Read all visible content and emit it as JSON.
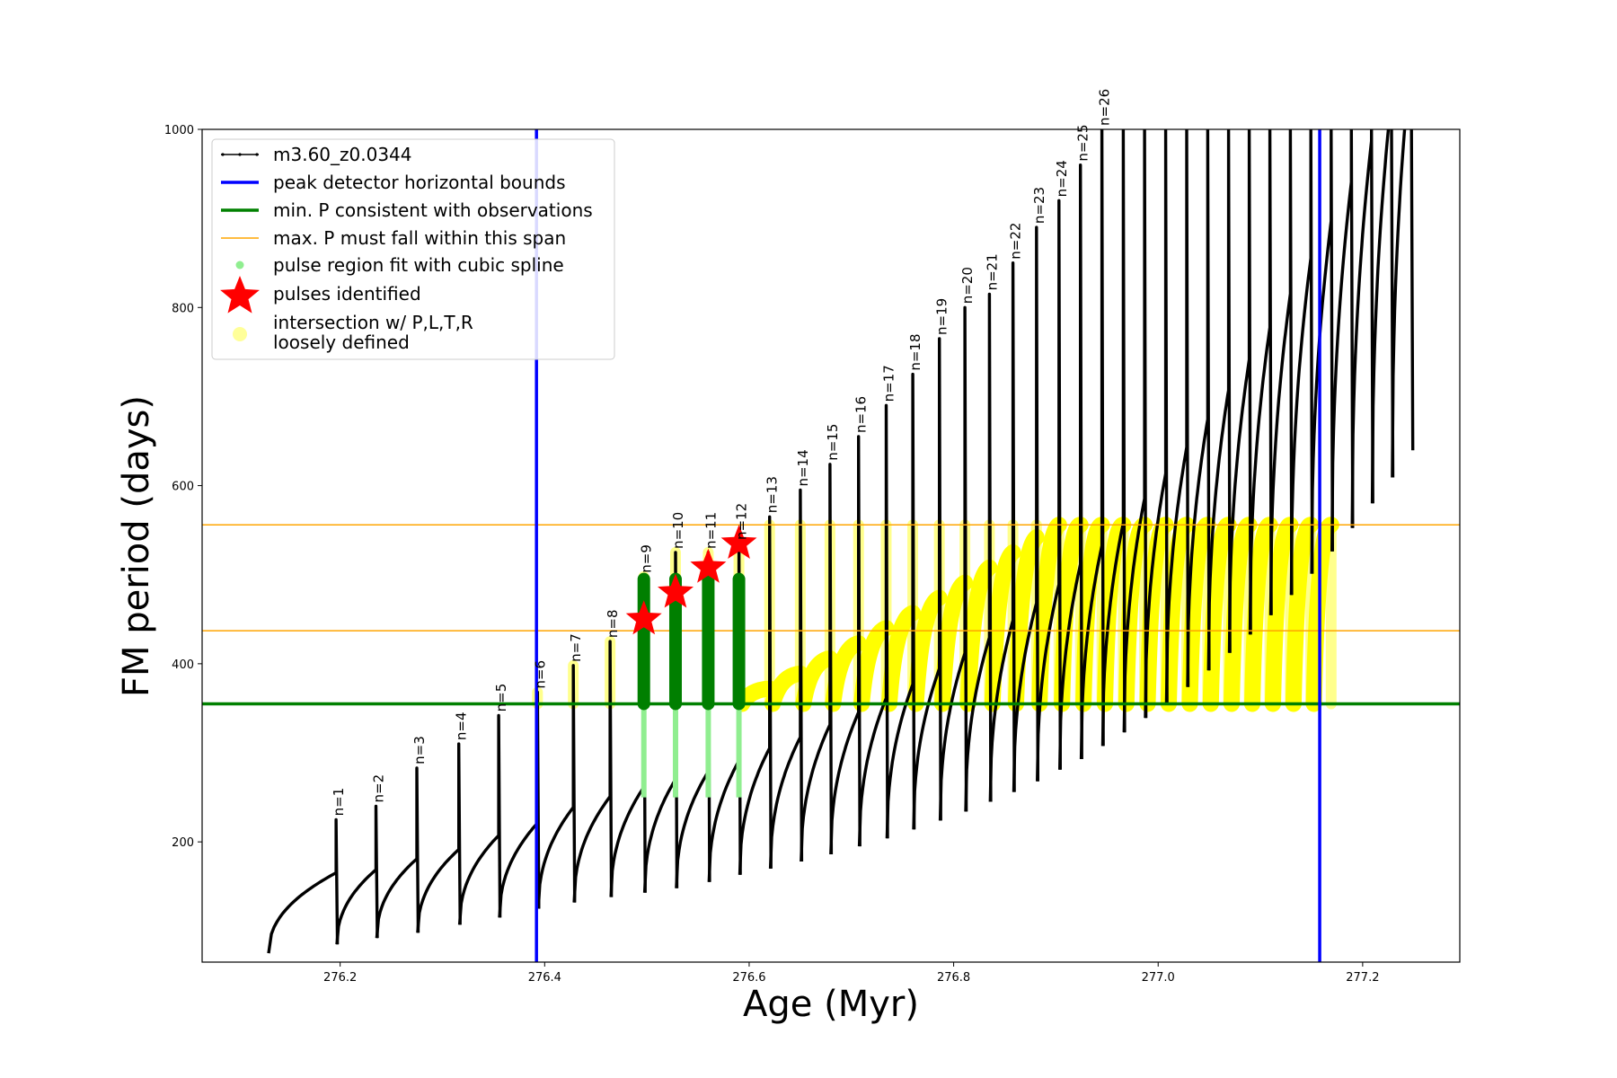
{
  "chart_data": {
    "type": "line",
    "xlabel": "Age (Myr)",
    "ylabel": "FM period (days)",
    "xlim": [
      276.065,
      277.295
    ],
    "ylim": [
      65,
      1000
    ],
    "x_ticks": [
      276.2,
      276.4,
      276.6,
      276.8,
      277.0,
      277.2
    ],
    "x_tick_labels": [
      "276.2",
      "276.4",
      "276.6",
      "276.8",
      "277.0",
      "277.2"
    ],
    "y_ticks": [
      200,
      400,
      600,
      800,
      1000
    ],
    "y_tick_labels": [
      "200",
      "400",
      "600",
      "800",
      "1000"
    ],
    "grid": false,
    "legend_position": "top-left",
    "legend": [
      {
        "label": "m3.60_z0.0344",
        "style": "line-dots",
        "color": "#000000"
      },
      {
        "label": "peak detector horizontal bounds",
        "style": "thick-line",
        "color": "#0000ff"
      },
      {
        "label": "min. P consistent with observations",
        "style": "thick-line",
        "color": "#008000"
      },
      {
        "label": "max. P must fall within this span",
        "style": "thin-line",
        "color": "#ffa500"
      },
      {
        "label": "pulse region fit with cubic spline",
        "style": "dot",
        "color": "#90ee90"
      },
      {
        "label": "pulses identified",
        "style": "star",
        "color": "#ff0000"
      },
      {
        "label_lines": [
          "intersection w/ P,L,T,R",
          "loosely defined"
        ],
        "style": "circle",
        "color": "#ffff99"
      }
    ],
    "reference_lines": {
      "vertical_blue": [
        276.392,
        277.158
      ],
      "horizontal_green": 355,
      "horizontal_orange": [
        437,
        556
      ]
    },
    "pulses": [
      {
        "label": "n=1",
        "age": 276.196,
        "peak": 225,
        "min_before": 83
      },
      {
        "label": "n=2",
        "age": 276.235,
        "peak": 240,
        "min_before": 85
      },
      {
        "label": "n=3",
        "age": 276.275,
        "peak": 283,
        "min_before": 92
      },
      {
        "label": "n=4",
        "age": 276.316,
        "peak": 310,
        "min_before": 98
      },
      {
        "label": "n=5",
        "age": 276.355,
        "peak": 342,
        "min_before": 107
      },
      {
        "label": "n=6",
        "age": 276.393,
        "peak": 368,
        "min_before": 115
      },
      {
        "label": "n=7",
        "age": 276.428,
        "peak": 398,
        "min_before": 125
      },
      {
        "label": "n=8",
        "age": 276.464,
        "peak": 425,
        "min_before": 132
      },
      {
        "label": "n=9",
        "age": 276.497,
        "peak": 498,
        "min_before": 138
      },
      {
        "label": "n=10",
        "age": 276.528,
        "peak": 525,
        "min_before": 143
      },
      {
        "label": "n=11",
        "age": 276.56,
        "peak": 525,
        "min_before": 148
      },
      {
        "label": "n=12",
        "age": 276.59,
        "peak": 535,
        "min_before": 155
      },
      {
        "label": "n=13",
        "age": 276.62,
        "peak": 565,
        "min_before": 163
      },
      {
        "label": "n=14",
        "age": 276.65,
        "peak": 595,
        "min_before": 170
      },
      {
        "label": "n=15",
        "age": 276.679,
        "peak": 624,
        "min_before": 178
      },
      {
        "label": "n=16",
        "age": 276.707,
        "peak": 655,
        "min_before": 186
      },
      {
        "label": "n=17",
        "age": 276.734,
        "peak": 690,
        "min_before": 195
      },
      {
        "label": "n=18",
        "age": 276.76,
        "peak": 725,
        "min_before": 204
      },
      {
        "label": "n=19",
        "age": 276.786,
        "peak": 765,
        "min_before": 214
      },
      {
        "label": "n=20",
        "age": 276.811,
        "peak": 800,
        "min_before": 224
      },
      {
        "label": "n=21",
        "age": 276.835,
        "peak": 815,
        "min_before": 234
      },
      {
        "label": "n=22",
        "age": 276.858,
        "peak": 850,
        "min_before": 245
      },
      {
        "label": "n=23",
        "age": 276.881,
        "peak": 890,
        "min_before": 256
      },
      {
        "label": "n=24",
        "age": 276.903,
        "peak": 920,
        "min_before": 268
      },
      {
        "label": "n=25",
        "age": 276.924,
        "peak": 960,
        "min_before": 281
      },
      {
        "label": "n=26",
        "age": 276.945,
        "peak": 1000,
        "min_before": 293
      }
    ],
    "identified_pulses": [
      {
        "age": 276.497,
        "period": 450
      },
      {
        "age": 276.528,
        "period": 480
      },
      {
        "age": 276.56,
        "period": 508
      },
      {
        "age": 276.59,
        "period": 535
      }
    ],
    "track_start_age": 276.13,
    "track_end_age": 277.235
  },
  "colors": {
    "track": "#000000",
    "bounds": "#0000ff",
    "min_p": "#008000",
    "max_p": "#ffa500",
    "spline": "#90ee90",
    "spline_dark": "#007f00",
    "star": "#ff0000",
    "intersection": "#ffff00"
  }
}
